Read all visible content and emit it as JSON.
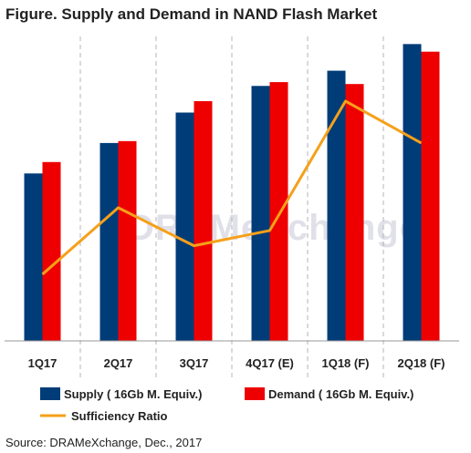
{
  "title": "Figure. Supply and Demand in NAND Flash Market",
  "source": "Source: DRAMeXchange, Dec., 2017",
  "watermark": "DRAMeXchange",
  "colors": {
    "supply": "#003c78",
    "demand": "#ee0000",
    "ratio": "#f5a01a",
    "grid": "#b5b5b5",
    "axis": "#999999"
  },
  "chart_data": {
    "type": "bar",
    "categories": [
      "1Q17",
      "2Q17",
      "3Q17",
      "4Q17 (E)",
      "1Q18 (F)",
      "2Q18 (F)"
    ],
    "series": [
      {
        "name": "Supply ( 16Gb M. Equiv.)",
        "type": "bar",
        "values": [
          44,
          52,
          60,
          67,
          71,
          78
        ]
      },
      {
        "name": "Demand ( 16Gb M. Equiv.)",
        "type": "bar",
        "values": [
          47,
          52.5,
          63,
          68,
          67.5,
          76
        ]
      },
      {
        "name": "Sufficiency Ratio",
        "type": "line",
        "values": [
          -4.5,
          -1,
          -3,
          -2.2,
          4.6,
          2.4
        ]
      }
    ],
    "ylim": [
      0,
      80
    ],
    "y2lim": [
      -8,
      8
    ],
    "grid": "vertical dashed separators",
    "legend_position": "bottom"
  }
}
